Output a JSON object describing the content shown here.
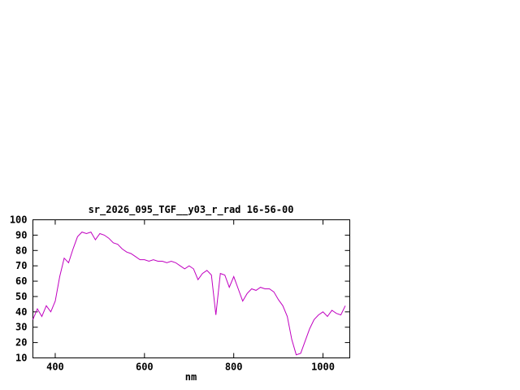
{
  "chart_data": {
    "type": "line",
    "title": "sr_2026_095_TGF__y03_r_rad 16-56-00",
    "xlabel": "nm",
    "ylabel": "",
    "xlim": [
      350,
      1060
    ],
    "ylim": [
      10,
      100
    ],
    "xticks": [
      400,
      600,
      800,
      1000
    ],
    "yticks": [
      10,
      20,
      30,
      40,
      50,
      60,
      70,
      80,
      90,
      100
    ],
    "line_color": "#c000c0",
    "axis_color": "#000000",
    "x": [
      350,
      360,
      370,
      380,
      390,
      400,
      410,
      420,
      430,
      440,
      450,
      460,
      470,
      480,
      490,
      500,
      510,
      520,
      530,
      540,
      550,
      560,
      570,
      580,
      590,
      600,
      610,
      620,
      630,
      640,
      650,
      660,
      670,
      680,
      690,
      700,
      710,
      720,
      730,
      740,
      750,
      760,
      770,
      780,
      790,
      800,
      810,
      820,
      830,
      840,
      850,
      860,
      870,
      880,
      890,
      900,
      910,
      920,
      930,
      940,
      950,
      960,
      970,
      980,
      990,
      1000,
      1010,
      1020,
      1030,
      1040,
      1050
    ],
    "values": [
      35,
      42,
      37,
      44,
      40,
      47,
      63,
      75,
      72,
      81,
      89,
      92,
      91,
      92,
      87,
      91,
      90,
      88,
      85,
      84,
      81,
      79,
      78,
      76,
      74,
      74,
      73,
      74,
      73,
      73,
      72,
      73,
      72,
      70,
      68,
      70,
      68,
      61,
      65,
      67,
      64,
      38,
      65,
      64,
      56,
      63,
      55,
      47,
      52,
      55,
      54,
      56,
      55,
      55,
      53,
      48,
      44,
      37,
      22,
      12,
      13,
      21,
      29,
      35,
      38,
      40,
      37,
      41,
      39,
      38,
      44
    ]
  }
}
